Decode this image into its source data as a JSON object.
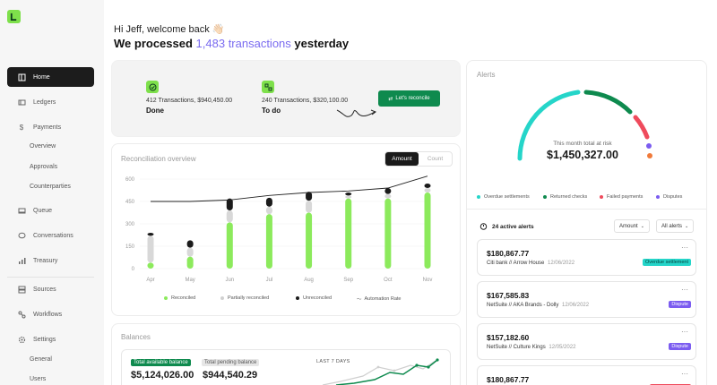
{
  "sidebar": {
    "items": [
      {
        "label": "Home"
      },
      {
        "label": "Ledgers"
      },
      {
        "label": "Payments"
      },
      {
        "label": "Overview"
      },
      {
        "label": "Approvals"
      },
      {
        "label": "Counterparties"
      },
      {
        "label": "Queue"
      },
      {
        "label": "Conversations"
      },
      {
        "label": "Treasury"
      },
      {
        "label": "Sources"
      },
      {
        "label": "Workflows"
      },
      {
        "label": "Settings"
      },
      {
        "label": "General"
      },
      {
        "label": "Users"
      }
    ]
  },
  "header": {
    "greeting": "Hi Jeff, welcome back 👋🏻",
    "headline_prefix": "We processed",
    "headline_highlight": "1,483 transactions",
    "headline_suffix": "yesterday"
  },
  "summary": {
    "done_text": "412 Transactions, $940,450.00",
    "done_status": "Done",
    "todo_text": "240 Transactions, $320,100.00",
    "todo_status": "To do",
    "reconcile_button": "Let's reconcile"
  },
  "overview": {
    "title": "Reconciliation overview",
    "toggle": [
      "Amount",
      "Count"
    ],
    "legend": [
      "Reconciled",
      "Partially reconciled",
      "Unreconciled",
      "Automation Rate"
    ]
  },
  "chart_data": {
    "type": "bar",
    "categories": [
      "Apr",
      "May",
      "Jun",
      "Jul",
      "Aug",
      "Sep",
      "Oct",
      "Nov"
    ],
    "yticks": [
      "600",
      "450",
      "300",
      "150",
      "0"
    ],
    "ylim": [
      0,
      600
    ],
    "series": [
      {
        "name": "Reconciled",
        "values": [
          40,
          80,
          310,
          365,
          375,
          470,
          470,
          510
        ]
      },
      {
        "name": "Partially reconciled",
        "values": [
          180,
          60,
          80,
          50,
          80,
          20,
          30,
          30
        ]
      },
      {
        "name": "Unreconciled",
        "values": [
          20,
          50,
          80,
          60,
          60,
          20,
          40,
          30
        ]
      },
      {
        "name": "Automation Rate",
        "values": [
          450,
          450,
          460,
          490,
          510,
          520,
          540,
          620
        ]
      }
    ],
    "colors": {
      "reconciled": "#8cea5c",
      "partial": "#d8d8d8",
      "unreconciled": "#1b1b1b",
      "line": "#222222"
    }
  },
  "balances": {
    "title": "Balances",
    "available_label": "Total available balance",
    "available_value": "$5,124,026.00",
    "pending_label": "Total pending balance",
    "pending_value": "$944,540.29",
    "last7_label": "LAST 7 DAYS"
  },
  "alerts": {
    "title": "Alerts",
    "gauge_caption": "This month total at risk",
    "gauge_value": "$1,450,327.00",
    "legend": [
      {
        "label": "Overdue settlements",
        "color": "#25d5c9"
      },
      {
        "label": "Returned checks",
        "color": "#0e8a4e"
      },
      {
        "label": "Failed payments",
        "color": "#ef4b5c"
      },
      {
        "label": "Disputes",
        "color": "#7b5cf0"
      }
    ],
    "active_count": "24 active alerts",
    "filter_amount": "Amount",
    "filter_all": "All alerts",
    "items": [
      {
        "amount": "$180,867.77",
        "source": "Citi bank // Arrow House",
        "date": "12/06/2022",
        "badge": "Overdue settlement"
      },
      {
        "amount": "$167,585.83",
        "source": "NetSuite // AKA Brands - Dolly",
        "date": "12/06/2022",
        "badge": "Dispute"
      },
      {
        "amount": "$157,182.60",
        "source": "NetSuite // Culture Kings",
        "date": "12/05/2022",
        "badge": "Dispute"
      },
      {
        "amount": "$180,867.77",
        "source": "",
        "date": "",
        "badge": ""
      }
    ]
  }
}
